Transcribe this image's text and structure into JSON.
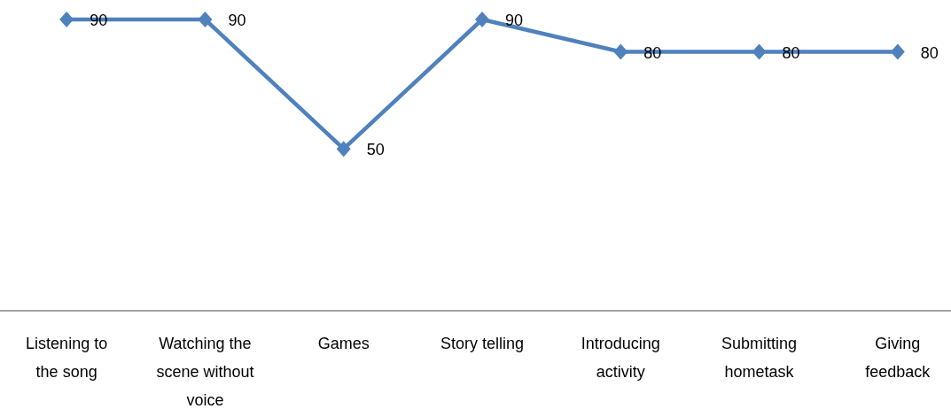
{
  "chart_data": {
    "type": "line",
    "categories": [
      "Listening to the song",
      "Watching the scene without voice",
      "Games",
      "Story telling",
      "Introducing activity",
      "Submitting hometask",
      "Giving feedback"
    ],
    "series": [
      {
        "color": "#4f81bd",
        "values": [
          90,
          90,
          50,
          90,
          80,
          80,
          80
        ]
      }
    ],
    "marker": "diamond",
    "data_labels": true
  }
}
